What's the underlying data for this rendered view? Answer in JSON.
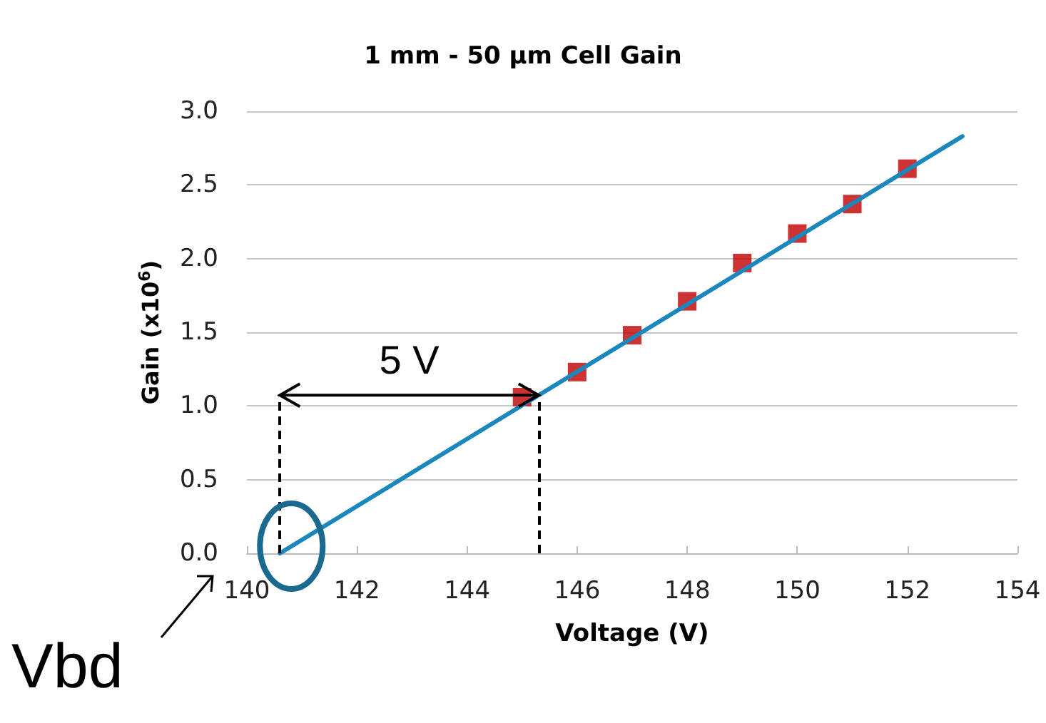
{
  "chart_data": {
    "type": "scatter",
    "title": "1 mm - 50 μm Cell Gain",
    "xlabel": "Voltage (V)",
    "ylabel": "Gain (x10$^{6}$)",
    "series": [
      {
        "color": "#c00000",
        "marker": "square",
        "x": [
          145,
          146,
          147,
          148,
          149,
          150,
          151,
          152
        ],
        "values": [
          1.06,
          1.23,
          1.48,
          1.71,
          1.97,
          2.17,
          2.37,
          2.61
        ]
      },
      {
        "type": "line",
        "color": "#1a87bd",
        "marker": "none",
        "x": [
          140.6,
          153
        ],
        "values": [
          0,
          2.83
        ]
      }
    ],
    "xlim": [
      140,
      154
    ],
    "xticks": [
      140,
      142,
      144,
      146,
      148,
      150,
      152,
      154
    ],
    "ylim": [
      0,
      3
    ],
    "yticks": [
      {
        "value": 0,
        "label": "0.0"
      },
      {
        "value": 0.5,
        "label": "0.5"
      },
      {
        "value": 1,
        "label": "1.0"
      },
      {
        "value": 1.5,
        "label": "1.5"
      },
      {
        "value": 2,
        "label": "2.0"
      },
      {
        "value": 2.5,
        "label": "2.5"
      },
      {
        "value": 3,
        "label": "3.0"
      }
    ],
    "grid": "y",
    "ref_lines": [
      {
        "axis": "x",
        "value": 140.6,
        "color": "#000000",
        "line_style": "dashed"
      },
      {
        "axis": "x",
        "value": 145.3,
        "color": "#000000",
        "line_style": "dashed"
      }
    ],
    "annotations": [
      "5 V",
      "Vbd"
    ]
  }
}
